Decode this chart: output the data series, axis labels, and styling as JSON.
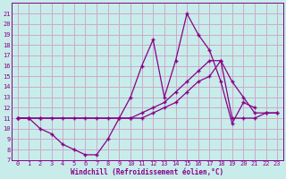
{
  "xlabel": "Windchill (Refroidissement éolien,°C)",
  "background_color": "#c8ecea",
  "grid_color": "#ccaacc",
  "line_color": "#880088",
  "xlim": [
    -0.5,
    23.5
  ],
  "ylim": [
    7,
    22
  ],
  "xticks": [
    0,
    1,
    2,
    3,
    4,
    5,
    6,
    7,
    8,
    9,
    10,
    11,
    12,
    13,
    14,
    15,
    16,
    17,
    18,
    19,
    20,
    21,
    22,
    23
  ],
  "yticks": [
    7,
    8,
    9,
    10,
    11,
    12,
    13,
    14,
    15,
    16,
    17,
    18,
    19,
    20,
    21
  ],
  "line1_x": [
    0,
    1,
    2,
    3,
    4,
    5,
    6,
    7,
    8,
    9,
    10,
    11,
    12,
    13,
    14,
    15,
    16,
    17,
    18,
    19,
    20,
    21
  ],
  "line1_y": [
    11,
    11,
    10,
    9.5,
    8.5,
    8,
    7.5,
    7.5,
    9,
    11,
    13,
    16,
    18.5,
    13,
    16.5,
    21,
    19,
    17.5,
    14.5,
    10.5,
    12.5,
    12
  ],
  "line2_x": [
    0,
    1,
    2,
    10,
    11,
    12,
    13,
    14,
    15,
    16,
    17,
    18,
    19,
    20,
    21,
    22,
    23
  ],
  "line2_y": [
    11,
    11,
    11,
    11,
    11.5,
    12,
    12.5,
    13.5,
    14.5,
    15.5,
    16.5,
    16.5,
    11,
    11,
    11,
    11.5,
    11.5
  ],
  "line3_x": [
    0,
    1,
    2,
    3,
    4,
    5,
    6,
    7,
    8,
    9,
    10,
    11,
    12,
    13,
    14,
    15,
    16,
    17,
    18,
    19,
    20,
    21,
    22,
    23
  ],
  "line3_y": [
    11,
    11,
    11,
    11,
    11,
    11,
    11,
    11,
    11,
    11,
    11,
    11,
    11.5,
    12,
    12.5,
    13.5,
    14.5,
    15,
    16.5,
    14.5,
    13,
    11.5,
    11.5,
    11.5
  ]
}
